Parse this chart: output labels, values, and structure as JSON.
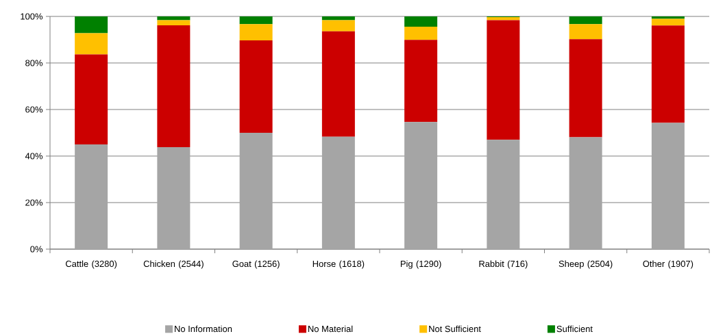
{
  "chart_data": {
    "type": "bar",
    "stacked": true,
    "categories": [
      "Cattle (3280)",
      "Chicken (2544)",
      "Goat (1256)",
      "Horse (1618)",
      "Pig (1290)",
      "Rabbit (716)",
      "Sheep (2504)",
      "Other (1907)"
    ],
    "series": [
      {
        "name": "No Information",
        "color": "#a5a5a5",
        "values": [
          45.0,
          43.8,
          50.0,
          48.3,
          54.6,
          47.0,
          48.1,
          54.3
        ]
      },
      {
        "name": "No Material",
        "color": "#cc0000",
        "values": [
          38.7,
          52.4,
          39.7,
          45.3,
          35.3,
          51.4,
          42.1,
          41.8
        ]
      },
      {
        "name": "Not Sufficient",
        "color": "#ffc000",
        "values": [
          9.1,
          2.2,
          7.0,
          4.8,
          5.7,
          1.3,
          6.5,
          2.9
        ]
      },
      {
        "name": "Sufficient",
        "color": "#008000",
        "values": [
          7.2,
          1.6,
          3.3,
          1.6,
          4.4,
          0.3,
          3.3,
          1.0
        ]
      }
    ],
    "ylim": [
      0,
      100
    ],
    "yticks": [
      {
        "value": 0,
        "label": "0%"
      },
      {
        "value": 20,
        "label": "20%"
      },
      {
        "value": 40,
        "label": "40%"
      },
      {
        "value": 60,
        "label": "60%"
      },
      {
        "value": 80,
        "label": "80%"
      },
      {
        "value": 100,
        "label": "100%"
      }
    ],
    "grid": "y",
    "legend": "bottom"
  }
}
